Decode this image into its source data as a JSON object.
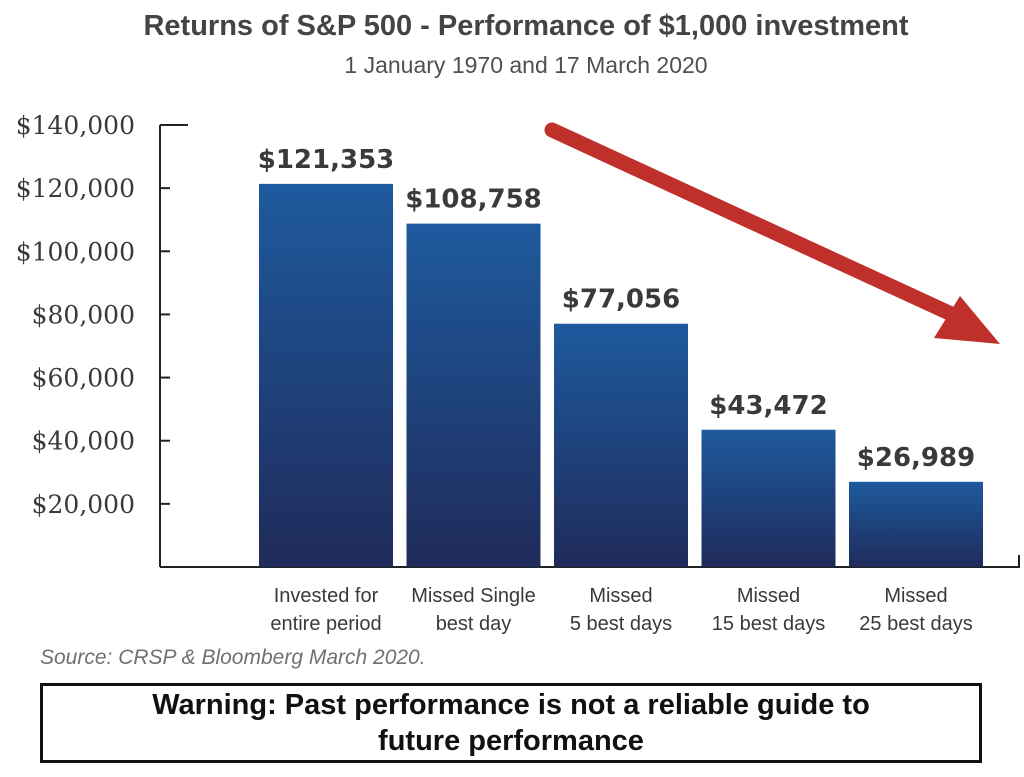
{
  "chart_data": {
    "type": "bar",
    "title": "Returns of S&P 500 - Performance of $1,000 investment",
    "subtitle": "1 January 1970 and 17 March 2020",
    "categories": [
      [
        "Invested for",
        "entire period"
      ],
      [
        "Missed Single",
        "best day"
      ],
      [
        "Missed",
        "5 best days"
      ],
      [
        "Missed",
        "15 best days"
      ],
      [
        "Missed",
        "25 best days"
      ]
    ],
    "values": [
      121353,
      108758,
      77056,
      43472,
      26989
    ],
    "data_labels": [
      "$121,353",
      "$108,758",
      "$77,056",
      "$43,472",
      "$26,989"
    ],
    "yticks": [
      20000,
      40000,
      60000,
      80000,
      100000,
      120000,
      140000
    ],
    "ytick_labels": [
      "$20,000",
      "$40,000",
      "$60,000",
      "$80,000",
      "$100,000",
      "$120,000",
      "$140,000"
    ],
    "ylim": [
      0,
      140000
    ],
    "xlabel": "",
    "ylabel": "",
    "grid": false,
    "legend": "none",
    "bar_color_top": "#1e5a9e",
    "bar_color_bottom": "#1f2b5a",
    "trend_arrow_color": "#c0302a"
  },
  "source": "Source: CRSP & Bloomberg March 2020.",
  "warning": "Warning: Past performance is not a reliable guide to future performance"
}
